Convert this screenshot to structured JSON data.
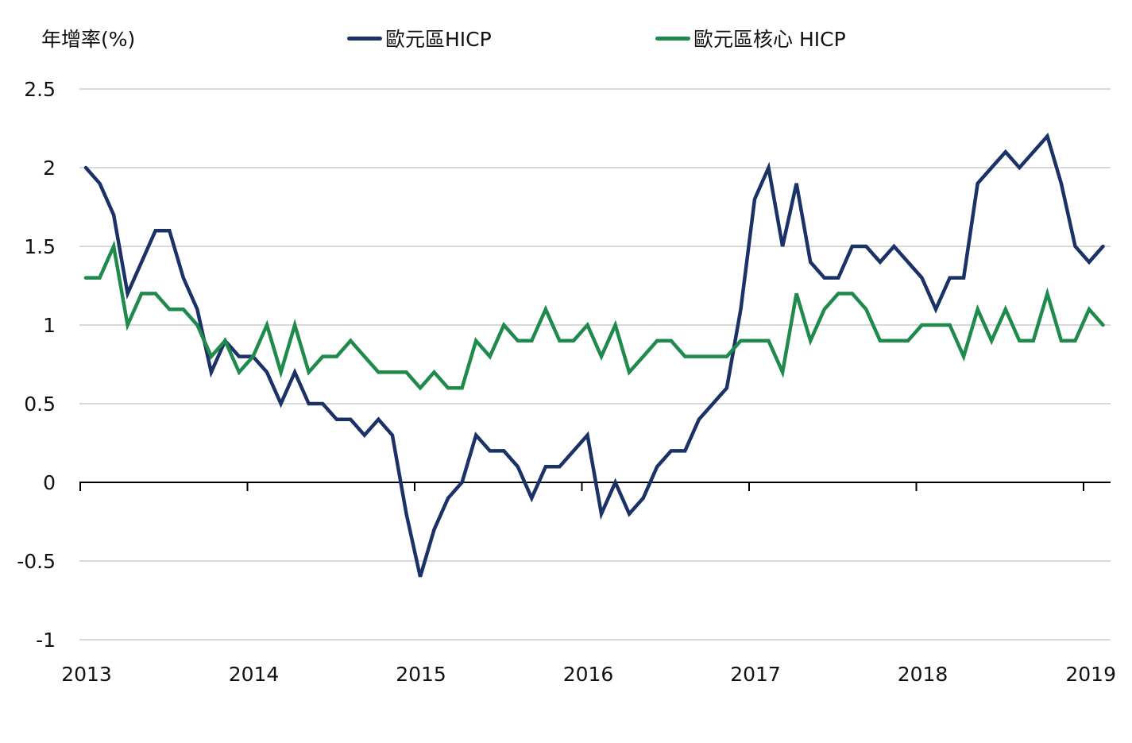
{
  "chart_data": {
    "type": "line",
    "title": "",
    "ylabel": "年增率(%)",
    "xlabel": "",
    "ylim": [
      -1,
      2.5
    ],
    "yticks": [
      2.5,
      2,
      1.5,
      1,
      0.5,
      0,
      -0.5,
      -1
    ],
    "ytick_labels": [
      "2.5",
      "2",
      "1.5",
      "1",
      "0.5",
      "0",
      "-0.5",
      "-1"
    ],
    "xticks": [
      "2013",
      "2014",
      "2015",
      "2016",
      "2017",
      "2018",
      "2019"
    ],
    "x_start": "2013-01",
    "x_end": "2019-02",
    "frequency": "monthly",
    "grid": true,
    "legend_position": "top",
    "series": [
      {
        "name": "歐元區HICP",
        "color": "#1B3266",
        "values": [
          2.0,
          1.9,
          1.7,
          1.2,
          1.4,
          1.6,
          1.6,
          1.3,
          1.1,
          0.7,
          0.9,
          0.8,
          0.8,
          0.7,
          0.5,
          0.7,
          0.5,
          0.5,
          0.4,
          0.4,
          0.3,
          0.4,
          0.3,
          -0.2,
          -0.6,
          -0.3,
          -0.1,
          0.0,
          0.3,
          0.2,
          0.2,
          0.1,
          -0.1,
          0.1,
          0.1,
          0.2,
          0.3,
          -0.2,
          0.0,
          -0.2,
          -0.1,
          0.1,
          0.2,
          0.2,
          0.4,
          0.5,
          0.6,
          1.1,
          1.8,
          2.0,
          1.5,
          1.9,
          1.4,
          1.3,
          1.3,
          1.5,
          1.5,
          1.4,
          1.5,
          1.4,
          1.3,
          1.1,
          1.3,
          1.3,
          1.9,
          2.0,
          2.1,
          2.0,
          2.1,
          2.2,
          1.9,
          1.5,
          1.4,
          1.5
        ]
      },
      {
        "name": "歐元區核心 HICP",
        "color": "#1E8A4C",
        "values": [
          1.3,
          1.3,
          1.5,
          1.0,
          1.2,
          1.2,
          1.1,
          1.1,
          1.0,
          0.8,
          0.9,
          0.7,
          0.8,
          1.0,
          0.7,
          1.0,
          0.7,
          0.8,
          0.8,
          0.9,
          0.8,
          0.7,
          0.7,
          0.7,
          0.6,
          0.7,
          0.6,
          0.6,
          0.9,
          0.8,
          1.0,
          0.9,
          0.9,
          1.1,
          0.9,
          0.9,
          1.0,
          0.8,
          1.0,
          0.7,
          0.8,
          0.9,
          0.9,
          0.8,
          0.8,
          0.8,
          0.8,
          0.9,
          0.9,
          0.9,
          0.7,
          1.2,
          0.9,
          1.1,
          1.2,
          1.2,
          1.1,
          0.9,
          0.9,
          0.9,
          1.0,
          1.0,
          1.0,
          0.8,
          1.1,
          0.9,
          1.1,
          0.9,
          0.9,
          1.2,
          0.9,
          0.9,
          1.1,
          1.0
        ]
      }
    ]
  }
}
